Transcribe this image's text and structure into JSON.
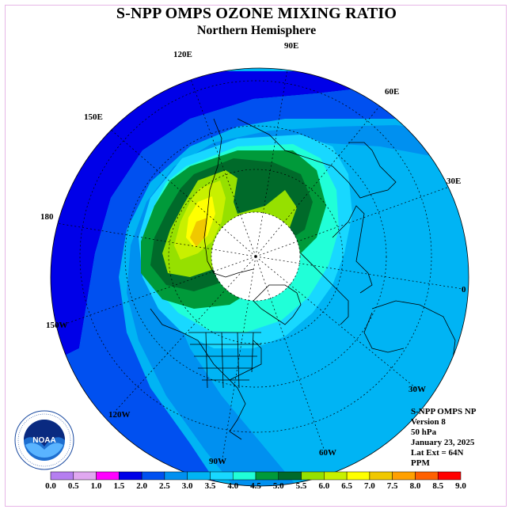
{
  "header": {
    "title": "S-NPP OMPS OZONE MIXING RATIO",
    "subtitle": "Northern Hemisphere"
  },
  "info": {
    "line1": "S-NPP OMPS NP",
    "line2": "Version 8",
    "line3": "50 hPa",
    "line4": "January 23, 2025",
    "line5": "Lat Ext = 64N",
    "line6": "PPM"
  },
  "longitude_labels": {
    "l90e": "90E",
    "l60e": "60E",
    "l30e": "30E",
    "l0": "0",
    "l30w": "30W",
    "l60w": "60W",
    "l90w": "90W",
    "l120w": "120W",
    "l150w": "150W",
    "l180": "180",
    "l150e": "150E",
    "l120e": "120E"
  },
  "legend": {
    "ticks": [
      "0.0",
      "0.5",
      "1.0",
      "1.5",
      "2.0",
      "2.5",
      "3.0",
      "3.5",
      "4.0",
      "4.5",
      "5.0",
      "5.5",
      "6.0",
      "6.5",
      "7.0",
      "7.5",
      "8.0",
      "8.5",
      "9.0"
    ],
    "colors": [
      "#b57ef0",
      "#e0a8f0",
      "#ff00ff",
      "#0000e8",
      "#0050f0",
      "#0090f0",
      "#00b4f4",
      "#18d8ff",
      "#20ffd8",
      "#009a3a",
      "#006a2a",
      "#96e000",
      "#c8f000",
      "#ffff00",
      "#f0c800",
      "#ffa000",
      "#ff6000",
      "#ff0000",
      "#8a5a3a"
    ]
  },
  "logo": {
    "text": "NOAA",
    "ring_text": "NATIONAL OCEANIC AND ATMOSPHERIC ADMINISTRATION · U.S. DEPARTMENT OF COMMERCE"
  }
}
